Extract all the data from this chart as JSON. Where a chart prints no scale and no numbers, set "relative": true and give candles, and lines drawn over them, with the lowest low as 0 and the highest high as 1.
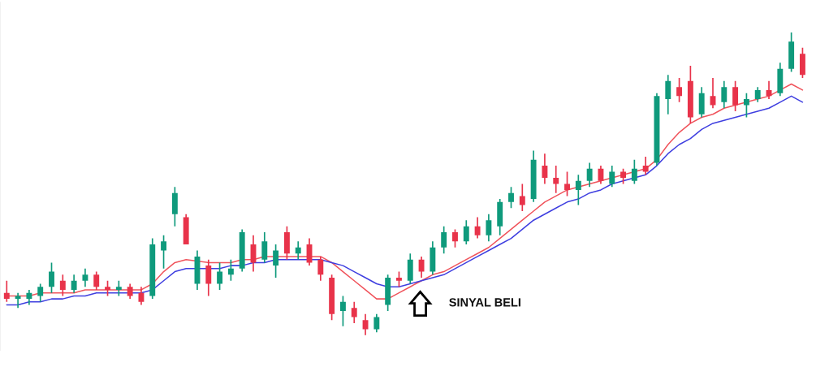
{
  "chart_data": {
    "type": "candlestick",
    "relative": true,
    "categories": [
      null,
      null,
      null,
      null,
      null,
      null,
      null,
      null,
      null,
      null,
      null,
      null,
      null,
      null,
      null,
      null,
      null,
      null,
      null,
      null,
      null,
      null,
      null,
      null,
      null,
      null,
      null,
      null,
      null,
      null,
      null,
      null,
      null,
      null,
      null,
      null,
      null,
      null,
      null,
      null,
      null,
      null,
      null,
      null,
      null,
      null,
      null,
      null,
      null,
      null,
      null,
      null,
      null,
      null,
      null,
      null,
      null,
      null,
      null,
      null,
      null,
      null,
      null,
      null,
      null,
      null,
      null,
      null,
      null,
      null,
      null,
      null
    ],
    "ohlc": [
      [
        0.14,
        0.18,
        0.11,
        0.12
      ],
      [
        0.12,
        0.14,
        0.09,
        0.13
      ],
      [
        0.12,
        0.15,
        0.1,
        0.14
      ],
      [
        0.13,
        0.17,
        0.11,
        0.16
      ],
      [
        0.16,
        0.24,
        0.14,
        0.21
      ],
      [
        0.18,
        0.2,
        0.13,
        0.15
      ],
      [
        0.15,
        0.2,
        0.14,
        0.18
      ],
      [
        0.18,
        0.22,
        0.16,
        0.2
      ],
      [
        0.2,
        0.21,
        0.15,
        0.16
      ],
      [
        0.16,
        0.18,
        0.13,
        0.15
      ],
      [
        0.15,
        0.18,
        0.13,
        0.16
      ],
      [
        0.16,
        0.17,
        0.12,
        0.13
      ],
      [
        0.14,
        0.16,
        0.1,
        0.11
      ],
      [
        0.13,
        0.32,
        0.12,
        0.3
      ],
      [
        0.28,
        0.33,
        0.22,
        0.31
      ],
      [
        0.4,
        0.49,
        0.36,
        0.47
      ],
      [
        0.39,
        0.4,
        0.3,
        0.3
      ],
      [
        0.17,
        0.28,
        0.15,
        0.26
      ],
      [
        0.23,
        0.25,
        0.13,
        0.17
      ],
      [
        0.17,
        0.24,
        0.15,
        0.21
      ],
      [
        0.2,
        0.25,
        0.18,
        0.22
      ],
      [
        0.22,
        0.35,
        0.21,
        0.34
      ],
      [
        0.3,
        0.33,
        0.21,
        0.24
      ],
      [
        0.25,
        0.34,
        0.24,
        0.31
      ],
      [
        0.23,
        0.3,
        0.19,
        0.28
      ],
      [
        0.34,
        0.36,
        0.25,
        0.27
      ],
      [
        0.27,
        0.31,
        0.25,
        0.29
      ],
      [
        0.3,
        0.32,
        0.23,
        0.24
      ],
      [
        0.25,
        0.26,
        0.18,
        0.2
      ],
      [
        0.19,
        0.2,
        0.05,
        0.07
      ],
      [
        0.08,
        0.13,
        0.03,
        0.11
      ],
      [
        0.09,
        0.11,
        0.04,
        0.06
      ],
      [
        0.05,
        0.07,
        0.0,
        0.02
      ],
      [
        0.02,
        0.07,
        0.01,
        0.06
      ],
      [
        0.1,
        0.2,
        0.08,
        0.19
      ],
      [
        0.19,
        0.21,
        0.16,
        0.18
      ],
      [
        0.18,
        0.27,
        0.17,
        0.25
      ],
      [
        0.25,
        0.26,
        0.19,
        0.21
      ],
      [
        0.21,
        0.31,
        0.2,
        0.29
      ],
      [
        0.29,
        0.36,
        0.27,
        0.34
      ],
      [
        0.34,
        0.35,
        0.29,
        0.31
      ],
      [
        0.31,
        0.38,
        0.3,
        0.36
      ],
      [
        0.36,
        0.39,
        0.32,
        0.33
      ],
      [
        0.33,
        0.4,
        0.31,
        0.38
      ],
      [
        0.36,
        0.45,
        0.33,
        0.44
      ],
      [
        0.44,
        0.49,
        0.42,
        0.47
      ],
      [
        0.46,
        0.5,
        0.41,
        0.43
      ],
      [
        0.45,
        0.61,
        0.44,
        0.58
      ],
      [
        0.56,
        0.6,
        0.5,
        0.52
      ],
      [
        0.52,
        0.56,
        0.47,
        0.5
      ],
      [
        0.5,
        0.54,
        0.46,
        0.48
      ],
      [
        0.48,
        0.53,
        0.43,
        0.51
      ],
      [
        0.51,
        0.57,
        0.49,
        0.55
      ],
      [
        0.55,
        0.56,
        0.5,
        0.51
      ],
      [
        0.5,
        0.56,
        0.49,
        0.54
      ],
      [
        0.54,
        0.55,
        0.5,
        0.52
      ],
      [
        0.51,
        0.58,
        0.5,
        0.55
      ],
      [
        0.56,
        0.59,
        0.53,
        0.54
      ],
      [
        0.57,
        0.8,
        0.56,
        0.79
      ],
      [
        0.78,
        0.86,
        0.73,
        0.84
      ],
      [
        0.82,
        0.85,
        0.77,
        0.79
      ],
      [
        0.84,
        0.89,
        0.7,
        0.72
      ],
      [
        0.73,
        0.82,
        0.72,
        0.8
      ],
      [
        0.79,
        0.85,
        0.75,
        0.76
      ],
      [
        0.77,
        0.84,
        0.75,
        0.82
      ],
      [
        0.82,
        0.84,
        0.74,
        0.76
      ],
      [
        0.76,
        0.8,
        0.72,
        0.78
      ],
      [
        0.78,
        0.82,
        0.77,
        0.81
      ],
      [
        0.81,
        0.84,
        0.78,
        0.79
      ],
      [
        0.8,
        0.9,
        0.79,
        0.88
      ],
      [
        0.88,
        1.0,
        0.87,
        0.97
      ],
      [
        0.93,
        0.95,
        0.85,
        0.86
      ]
    ],
    "series": [
      {
        "type": "line",
        "color": "#f0545c",
        "values": [
          0.13,
          0.13,
          0.13,
          0.14,
          0.14,
          0.14,
          0.14,
          0.15,
          0.15,
          0.15,
          0.15,
          0.15,
          0.15,
          0.17,
          0.21,
          0.24,
          0.25,
          null,
          0.24,
          0.24,
          0.24,
          0.25,
          0.25,
          0.26,
          0.26,
          0.26,
          0.26,
          0.26,
          0.26,
          0.24,
          0.21,
          0.18,
          0.15,
          0.12,
          0.12,
          0.14,
          0.16,
          0.18,
          0.2,
          0.21,
          0.23,
          0.25,
          0.27,
          0.29,
          0.32,
          0.35,
          0.38,
          0.41,
          0.44,
          0.46,
          0.48,
          0.49,
          0.5,
          0.51,
          0.52,
          0.53,
          0.54,
          0.55,
          0.58,
          0.63,
          0.67,
          0.7,
          0.72,
          0.73,
          0.75,
          0.76,
          0.77,
          0.78,
          0.79,
          0.81,
          0.83,
          0.81
        ]
      },
      {
        "type": "line",
        "color": "#3f3fe0",
        "values": [
          0.1,
          0.1,
          0.11,
          0.11,
          0.12,
          0.12,
          0.13,
          0.13,
          0.14,
          0.14,
          0.14,
          0.14,
          0.14,
          0.15,
          0.18,
          0.21,
          0.22,
          0.22,
          0.22,
          0.22,
          0.23,
          0.23,
          0.24,
          0.24,
          0.25,
          0.25,
          0.25,
          0.25,
          0.25,
          0.24,
          0.23,
          0.21,
          0.19,
          0.17,
          0.16,
          0.16,
          0.17,
          0.18,
          0.19,
          0.2,
          0.22,
          0.24,
          0.26,
          0.28,
          0.3,
          0.32,
          0.35,
          0.38,
          0.4,
          0.42,
          0.44,
          0.45,
          0.47,
          0.48,
          0.5,
          0.51,
          0.52,
          0.53,
          0.56,
          0.6,
          0.63,
          0.65,
          0.68,
          0.7,
          0.71,
          0.72,
          0.73,
          0.74,
          0.75,
          0.77,
          0.79,
          0.77
        ]
      }
    ],
    "annotations": [
      "SINYAL BELI"
    ]
  }
}
